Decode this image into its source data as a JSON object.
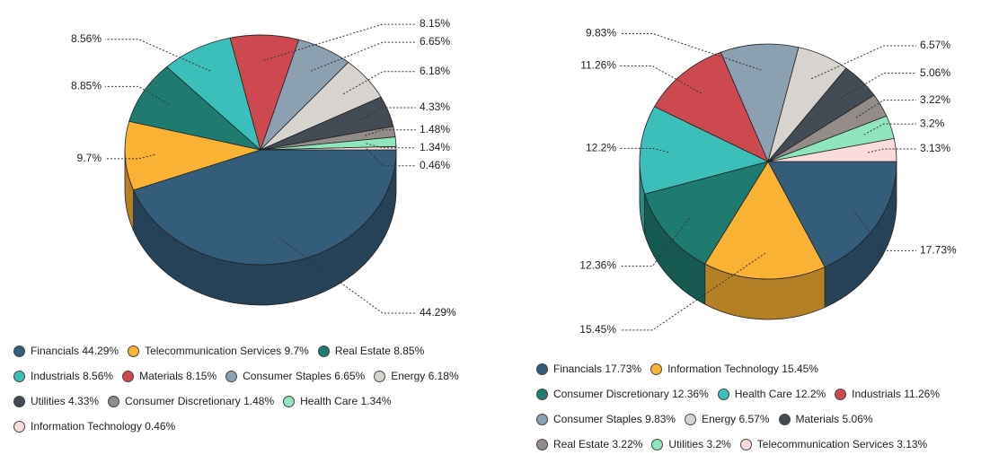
{
  "chart_data": [
    {
      "type": "pie",
      "categories": [
        "Financials",
        "Telecommunication Services",
        "Real Estate",
        "Industrials",
        "Materials",
        "Consumer Staples",
        "Energy",
        "Utilities",
        "Consumer Discretionary",
        "Health Care",
        "Information Technology"
      ],
      "values": [
        44.29,
        9.7,
        8.85,
        8.56,
        8.15,
        6.65,
        6.18,
        4.33,
        1.48,
        1.34,
        0.46
      ],
      "value_labels": [
        "44.29%",
        "9.7%",
        "8.85%",
        "8.56%",
        "8.15%",
        "6.65%",
        "6.18%",
        "4.33%",
        "1.48%",
        "1.34%",
        "0.46%"
      ],
      "colors": [
        "#345c7b",
        "#f9b233",
        "#1f7b6f",
        "#3cbfba",
        "#cc4a4f",
        "#8ba1b1",
        "#d7d4d0",
        "#434c55",
        "#938c88",
        "#8fe6bd",
        "#fbdcdc"
      ]
    },
    {
      "type": "pie",
      "categories": [
        "Financials",
        "Information Technology",
        "Consumer Discretionary",
        "Health Care",
        "Industrials",
        "Consumer Staples",
        "Energy",
        "Materials",
        "Real Estate",
        "Utilities",
        "Telecommunication Services"
      ],
      "values": [
        17.73,
        15.45,
        12.36,
        12.2,
        11.26,
        9.83,
        6.57,
        5.06,
        3.22,
        3.2,
        3.13
      ],
      "value_labels": [
        "17.73%",
        "15.45%",
        "12.36%",
        "12.2%",
        "11.26%",
        "9.83%",
        "6.57%",
        "5.06%",
        "3.22%",
        "3.2%",
        "3.13%"
      ],
      "colors": [
        "#345c7b",
        "#f9b233",
        "#1f7b6f",
        "#3cbfba",
        "#cc4a4f",
        "#8ba1b1",
        "#d7d4d0",
        "#434c55",
        "#938c88",
        "#8fe6bd",
        "#fbdcdc"
      ]
    }
  ]
}
